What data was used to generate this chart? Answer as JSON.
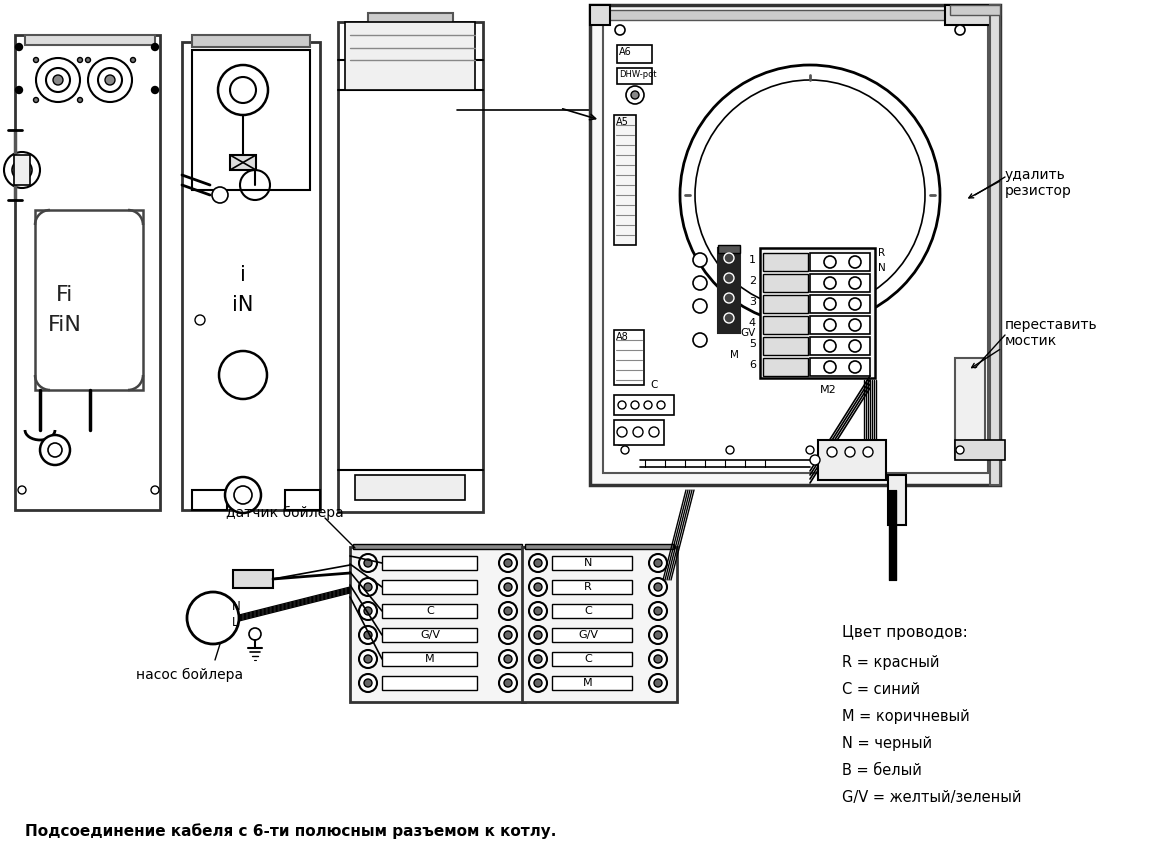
{
  "background_color": "#ffffff",
  "fig_width": 11.63,
  "fig_height": 8.58,
  "dpi": 100,
  "title_text": "Подсоединение кабеля с 6-ти полюсным разъемом к котлу.",
  "label_udalit": "удалить\nрезистор",
  "label_perestavit": "переставить\nмостик",
  "label_datchik": "датчик бойлера",
  "label_nasos": "насос бойлера",
  "label_tsvet": "Цвет проводов:",
  "label_R": "R = красный",
  "label_C": "C = синий",
  "label_M": "M = коричневый",
  "label_N": "N = черный",
  "label_B": "B = белый",
  "label_GV": "G/V = желтый/зеленый"
}
